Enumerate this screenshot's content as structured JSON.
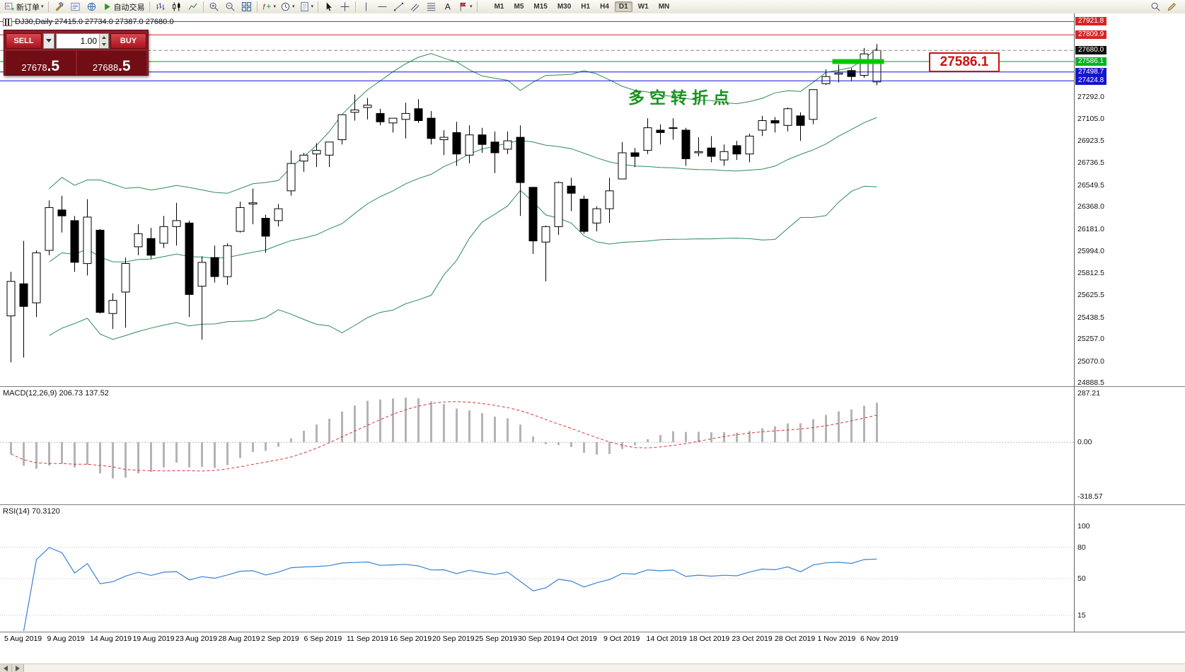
{
  "toolbar": {
    "items": [
      {
        "name": "new-order",
        "icon": "neworder",
        "label": "新订单",
        "caret": true
      },
      {
        "sep": true
      },
      {
        "name": "metaeditor",
        "icon": "hammer"
      },
      {
        "name": "market-watch",
        "icon": "list"
      },
      {
        "name": "navigator",
        "icon": "globe"
      },
      {
        "name": "autotrading",
        "icon": "play",
        "label": "自动交易"
      },
      {
        "sep": true
      },
      {
        "name": "bar-chart-mode",
        "icon": "bars"
      },
      {
        "name": "candlestick-mode",
        "icon": "candles"
      },
      {
        "name": "line-chart-mode",
        "icon": "linechart"
      },
      {
        "sep": true
      },
      {
        "name": "zoom-in",
        "icon": "zoomin"
      },
      {
        "name": "zoom-out",
        "icon": "zoomout"
      },
      {
        "name": "tile-windows",
        "icon": "tile"
      },
      {
        "sep": true
      },
      {
        "name": "indicators",
        "icon": "indicators",
        "caret": true
      },
      {
        "name": "periods",
        "icon": "clock",
        "caret": true
      },
      {
        "name": "templates",
        "icon": "template",
        "caret": true
      },
      {
        "sep": true
      },
      {
        "name": "cursor",
        "icon": "cursor"
      },
      {
        "name": "crosshair",
        "icon": "crosshair"
      },
      {
        "sep": true
      },
      {
        "name": "vertical-line",
        "icon": "vline"
      },
      {
        "name": "horizontal-line",
        "icon": "hline"
      },
      {
        "name": "trendline",
        "icon": "trend"
      },
      {
        "name": "equidistant-channel",
        "icon": "channel"
      },
      {
        "name": "fibonacci",
        "icon": "fibo"
      },
      {
        "name": "text",
        "icon": "textA"
      },
      {
        "name": "arrows",
        "icon": "flag",
        "caret": true
      },
      {
        "sep": true
      }
    ],
    "timeframes": [
      "M1",
      "M5",
      "M15",
      "M30",
      "H1",
      "H4",
      "D1",
      "W1",
      "MN"
    ],
    "active_timeframe": "D1",
    "right_items": [
      {
        "name": "search",
        "icon": "search"
      },
      {
        "name": "styles",
        "icon": "pencil"
      }
    ]
  },
  "one_click": {
    "sell_label": "SELL",
    "buy_label": "BUY",
    "volume": "1.00",
    "sell_price": "27678.5",
    "sell_price_main": "27678",
    "sell_price_frac": ".5",
    "buy_price": "27688.5",
    "buy_price_main": "27688",
    "buy_price_frac": ".5"
  },
  "chart": {
    "title": "DJ30,Daily  27415.0 27734.0 27387.0 27680.0",
    "annotation": "多空转折点",
    "callout": "27586.1"
  },
  "chart_data": {
    "type": "candlestick",
    "symbol": "DJ30",
    "period": "Daily",
    "ohlc_display": {
      "open": "27415.0",
      "high": "27734.0",
      "low": "27387.0",
      "close": "27680.0"
    },
    "candles": [
      [
        25450,
        25820,
        25060,
        25740
      ],
      [
        25720,
        26080,
        25100,
        25530
      ],
      [
        25560,
        26000,
        25440,
        25980
      ],
      [
        26000,
        26420,
        25960,
        26360
      ],
      [
        26340,
        26460,
        26150,
        26290
      ],
      [
        26250,
        26290,
        25820,
        25900
      ],
      [
        25890,
        26430,
        25790,
        26280
      ],
      [
        26170,
        26180,
        25470,
        25480
      ],
      [
        25470,
        25640,
        25340,
        25580
      ],
      [
        25650,
        25940,
        25350,
        25890
      ],
      [
        26030,
        26220,
        25960,
        26140
      ],
      [
        26100,
        26190,
        25930,
        25960
      ],
      [
        26060,
        26290,
        26020,
        26200
      ],
      [
        26200,
        26400,
        26040,
        26250
      ],
      [
        26230,
        26250,
        25440,
        25630
      ],
      [
        25700,
        25950,
        25250,
        25900
      ],
      [
        25940,
        26040,
        25730,
        25780
      ],
      [
        25780,
        26060,
        25710,
        26040
      ],
      [
        26160,
        26410,
        26150,
        26360
      ],
      [
        26390,
        26520,
        26220,
        26400
      ],
      [
        26270,
        26300,
        25980,
        26120
      ],
      [
        26250,
        26390,
        26200,
        26350
      ],
      [
        26500,
        26840,
        26460,
        26730
      ],
      [
        26750,
        26820,
        26660,
        26800
      ],
      [
        26810,
        26900,
        26700,
        26840
      ],
      [
        26800,
        26910,
        26700,
        26910
      ],
      [
        26930,
        27140,
        26890,
        27140
      ],
      [
        27160,
        27310,
        27090,
        27180
      ],
      [
        27200,
        27280,
        27100,
        27220
      ],
      [
        27150,
        27190,
        27050,
        27080
      ],
      [
        27070,
        27110,
        26990,
        27110
      ],
      [
        27100,
        27240,
        26940,
        27150
      ],
      [
        27190,
        27270,
        27070,
        27090
      ],
      [
        27110,
        27170,
        26890,
        26940
      ],
      [
        26930,
        27010,
        26800,
        26950
      ],
      [
        26990,
        27080,
        26710,
        26810
      ],
      [
        26800,
        27050,
        26730,
        26970
      ],
      [
        26970,
        27030,
        26820,
        26890
      ],
      [
        26910,
        27000,
        26650,
        26820
      ],
      [
        26850,
        27000,
        26810,
        26920
      ],
      [
        26950,
        27050,
        26290,
        26570
      ],
      [
        26530,
        26530,
        25970,
        26080
      ],
      [
        26070,
        26210,
        25740,
        26200
      ],
      [
        26200,
        26580,
        26130,
        26570
      ],
      [
        26540,
        26610,
        26330,
        26480
      ],
      [
        26430,
        26460,
        26140,
        26160
      ],
      [
        26230,
        26370,
        26160,
        26350
      ],
      [
        26350,
        26610,
        26230,
        26500
      ],
      [
        26600,
        26910,
        26600,
        26820
      ],
      [
        26820,
        26860,
        26700,
        26790
      ],
      [
        26840,
        27110,
        26810,
        27030
      ],
      [
        27010,
        27060,
        26890,
        26990
      ],
      [
        27030,
        27110,
        26930,
        27030
      ],
      [
        27010,
        27030,
        26710,
        26770
      ],
      [
        26820,
        26950,
        26790,
        26830
      ],
      [
        26860,
        26960,
        26740,
        26790
      ],
      [
        26760,
        26890,
        26710,
        26830
      ],
      [
        26880,
        26920,
        26760,
        26810
      ],
      [
        26810,
        26980,
        26740,
        26960
      ],
      [
        27010,
        27130,
        26960,
        27090
      ],
      [
        27090,
        27120,
        26990,
        27070
      ],
      [
        27050,
        27200,
        27000,
        27190
      ],
      [
        27130,
        27160,
        26920,
        27050
      ],
      [
        27100,
        27350,
        27060,
        27350
      ],
      [
        27400,
        27520,
        27390,
        27460
      ],
      [
        27480,
        27560,
        27410,
        27490
      ],
      [
        27510,
        27530,
        27420,
        27460
      ],
      [
        27470,
        27700,
        27450,
        27650
      ],
      [
        27415,
        27734,
        27387,
        27680
      ]
    ],
    "date_labels": [
      "5 Aug 2019",
      "9 Aug 2019",
      "14 Aug 2019",
      "19 Aug 2019",
      "23 Aug 2019",
      "28 Aug 2019",
      "2 Sep 2019",
      "6 Sep 2019",
      "11 Sep 2019",
      "16 Sep 2019",
      "20 Sep 2019",
      "25 Sep 2019",
      "30 Sep 2019",
      "4 Oct 2019",
      "9 Oct 2019",
      "14 Oct 2019",
      "18 Oct 2019",
      "23 Oct 2019",
      "28 Oct 2019",
      "1 Nov 2019",
      "6 Nov 2019"
    ],
    "price_ticks": [
      27292.0,
      27105.0,
      26923.5,
      26736.5,
      26549.5,
      26368.0,
      26181.0,
      25994.0,
      25812.5,
      25625.5,
      25438.5,
      25257.0,
      25070.0,
      24888.5
    ],
    "levels": [
      {
        "price": 27921.8,
        "color": "#e02020",
        "style": "solid",
        "label_bg": "#d42525"
      },
      {
        "price": 27809.9,
        "color": "#e02020",
        "style": "solid",
        "label_bg": "#d42525"
      },
      {
        "price": 27680.0,
        "color": "#888888",
        "style": "dashed",
        "label_bg": "#101010"
      },
      {
        "price": 27586.1,
        "color": "#00a018",
        "style": "solid",
        "label_bg": "#00b41e"
      },
      {
        "price": 27498.7,
        "color": "#1515cc",
        "style": "solid",
        "label_bg": "#1515cc"
      },
      {
        "price": 27424.8,
        "color": "#1515cc",
        "style": "solid",
        "label_bg": "#1515cc"
      }
    ],
    "highlight_band": {
      "price": 27586.1,
      "color": "#00d200"
    },
    "bollinger": {
      "period": 20,
      "deviation": 2,
      "color": "#2e8b57"
    },
    "macd": {
      "display": "MACD(12,26,9) 206.73 137.52",
      "params": [
        12,
        26,
        9
      ],
      "main_value": "206.73",
      "signal_value": "137.52",
      "axis_max": "287.21",
      "axis_zero": "0.00",
      "axis_min": "-318.57",
      "histogram_color": "#b4b4b4",
      "signal_color": "#dd3333"
    },
    "rsi": {
      "display": "RSI(14) 70.3120",
      "period": 14,
      "value": "70.3120",
      "levels": [
        100,
        80,
        50,
        15
      ],
      "line_color": "#3b82d0"
    }
  }
}
